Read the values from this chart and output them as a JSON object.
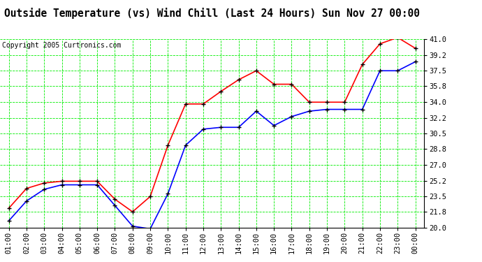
{
  "title": "Outside Temperature (vs) Wind Chill (Last 24 Hours) Sun Nov 27 00:00",
  "copyright": "Copyright 2005 Curtronics.com",
  "x_labels": [
    "01:00",
    "02:00",
    "03:00",
    "04:00",
    "05:00",
    "06:00",
    "07:00",
    "08:00",
    "09:00",
    "10:00",
    "11:00",
    "12:00",
    "13:00",
    "14:00",
    "15:00",
    "16:00",
    "17:00",
    "18:00",
    "19:00",
    "20:00",
    "21:00",
    "22:00",
    "23:00",
    "00:00"
  ],
  "temp_red": [
    22.2,
    24.4,
    25.0,
    25.2,
    25.2,
    25.2,
    23.2,
    21.8,
    23.5,
    29.2,
    33.8,
    33.8,
    35.2,
    36.5,
    37.5,
    36.0,
    36.0,
    34.0,
    34.0,
    34.0,
    38.2,
    40.5,
    41.2,
    40.0
  ],
  "temp_blue": [
    20.8,
    23.0,
    24.3,
    24.8,
    24.8,
    24.8,
    22.5,
    20.2,
    19.9,
    23.8,
    29.2,
    31.0,
    31.2,
    31.2,
    33.0,
    31.4,
    32.4,
    33.0,
    33.2,
    33.2,
    33.2,
    37.5,
    37.5,
    38.5
  ],
  "ylim": [
    20.0,
    41.0
  ],
  "yticks": [
    20.0,
    21.8,
    23.5,
    25.2,
    27.0,
    28.8,
    30.5,
    32.2,
    34.0,
    35.8,
    37.5,
    39.2,
    41.0
  ],
  "bg_color": "#ffffff",
  "grid_color": "#00ee00",
  "red_color": "#ff0000",
  "blue_color": "#0000ff",
  "title_fontsize": 10.5,
  "copyright_fontsize": 7,
  "tick_fontsize": 7.5
}
